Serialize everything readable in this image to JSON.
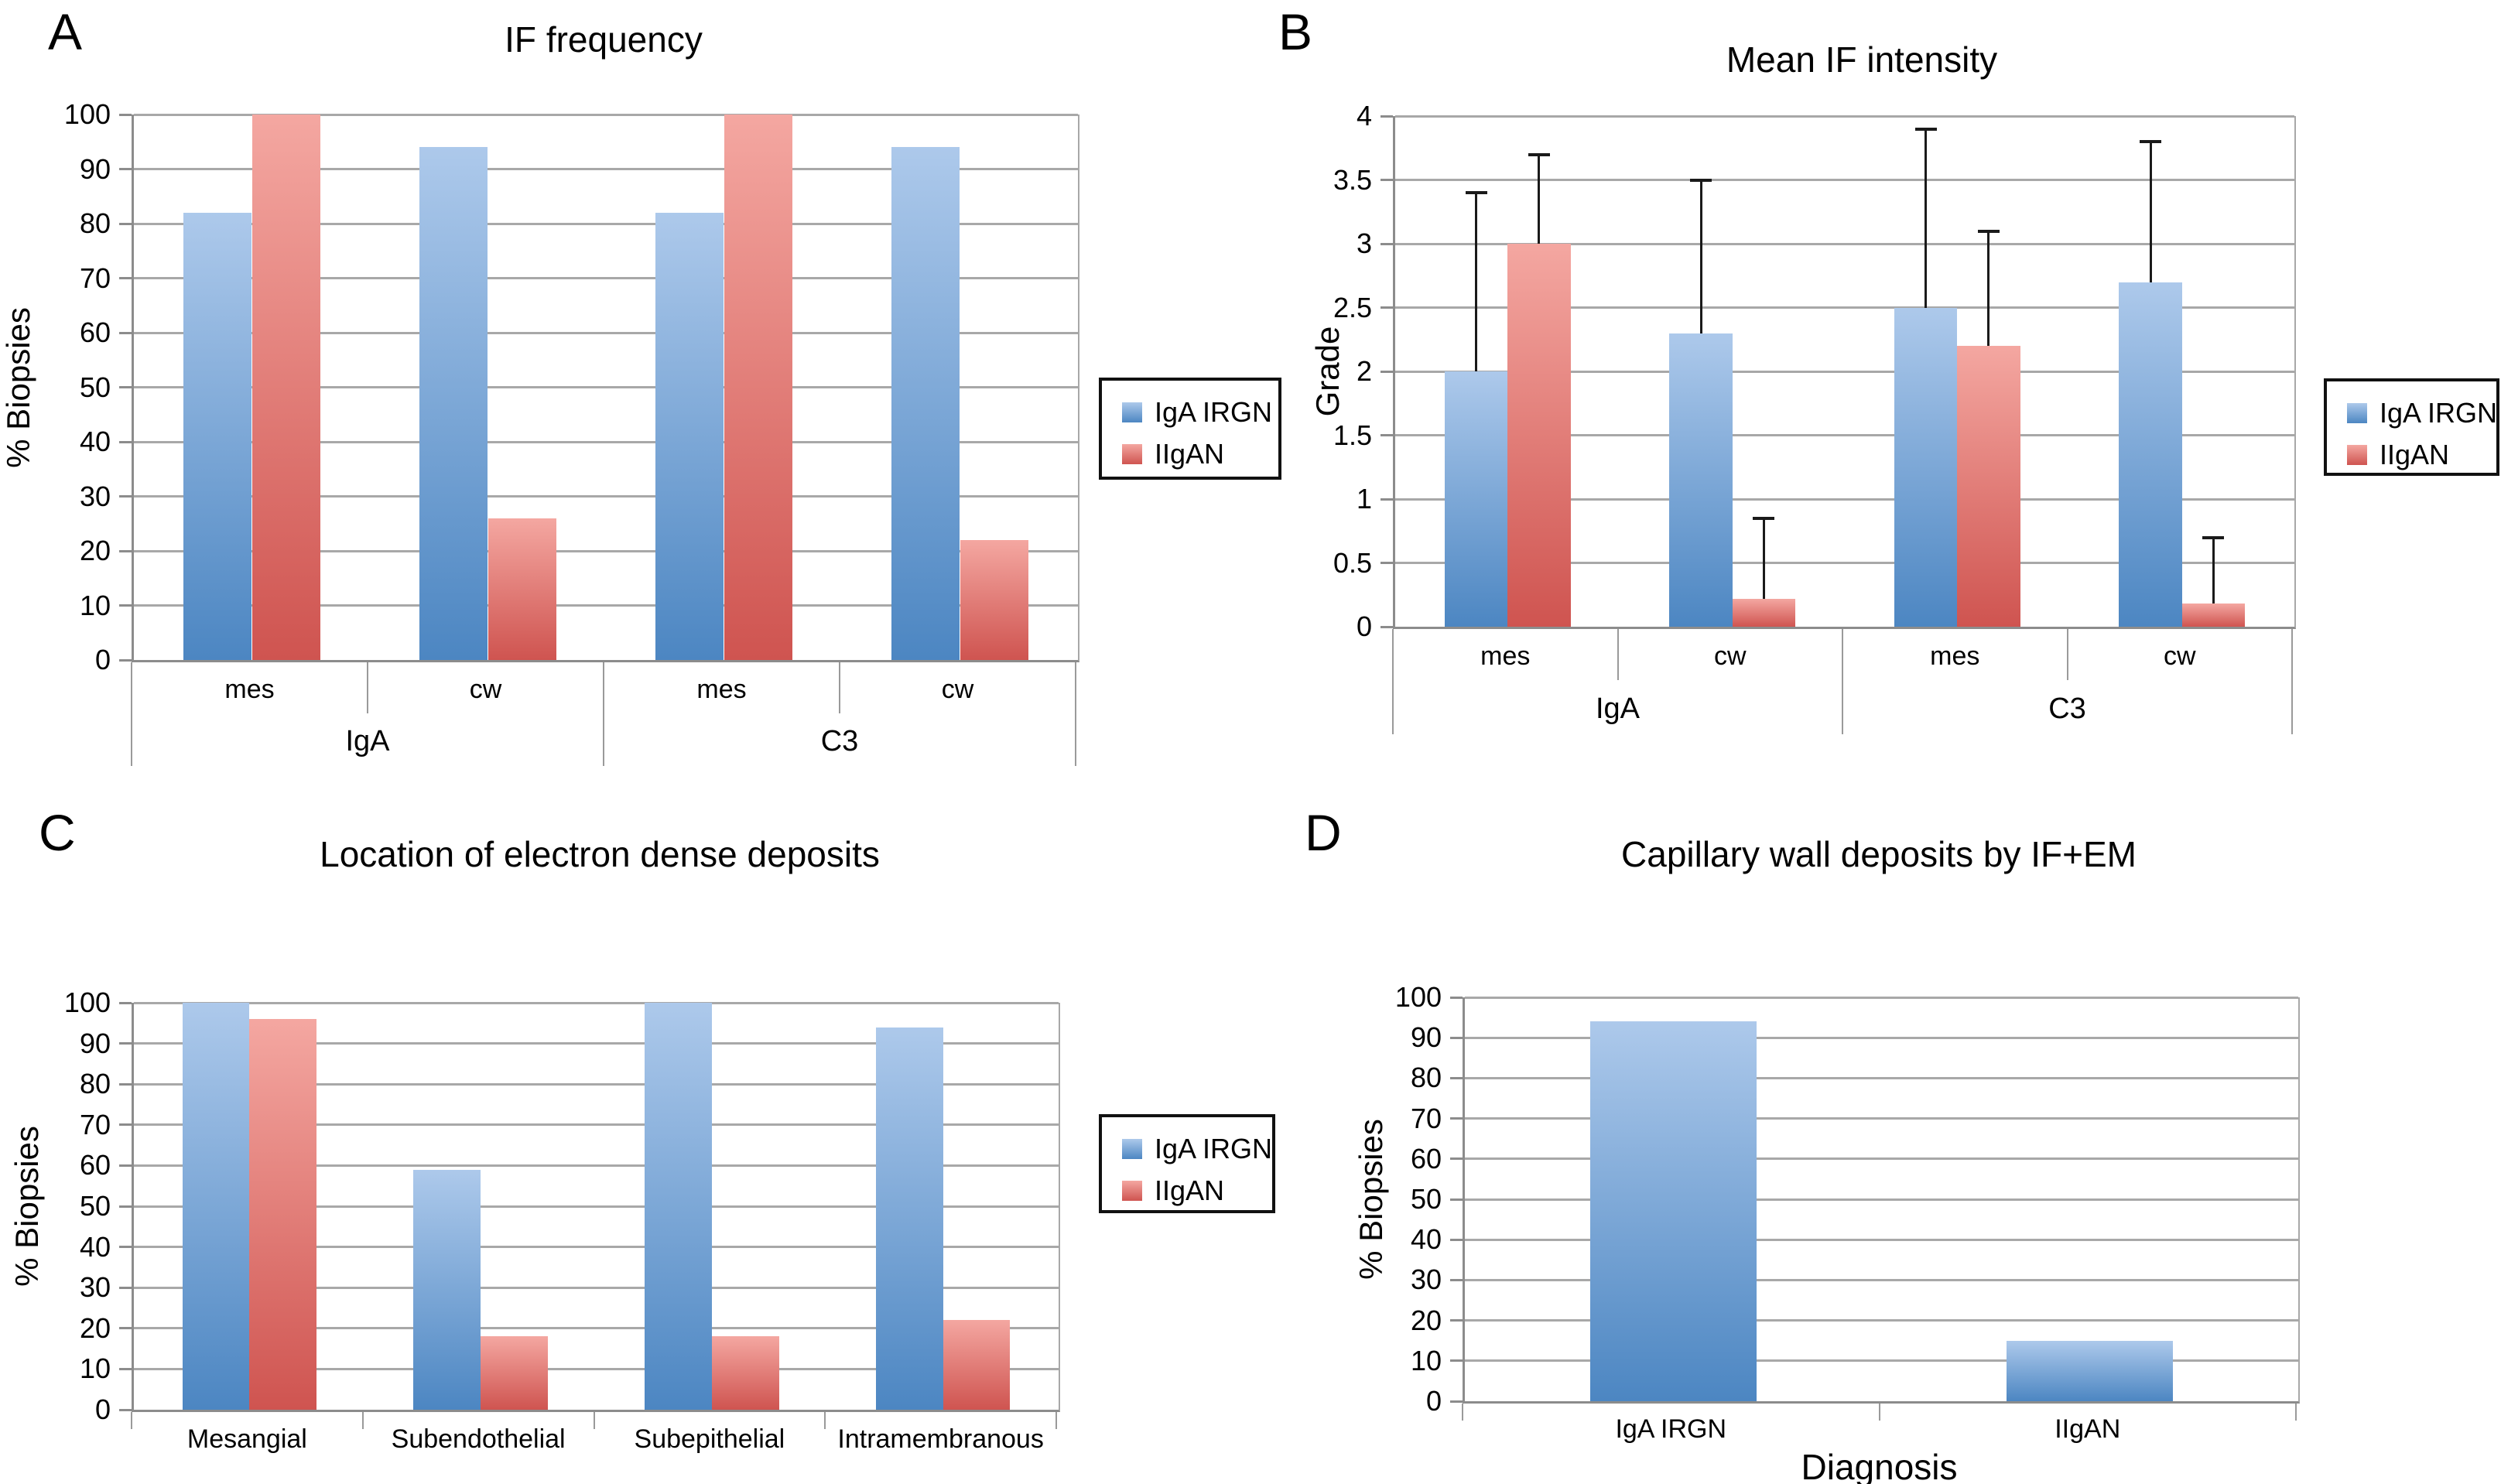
{
  "figure": {
    "background": "#ffffff"
  },
  "colors": {
    "blue": {
      "top": "#adc9eb",
      "bottom": "#4c86c2"
    },
    "red": {
      "top": "#f4a7a1",
      "bottom": "#cf5450"
    },
    "grid": "#a8a8a8",
    "axis": "#8c8c8c",
    "error_bar": "#1a1a1a"
  },
  "legend_items": [
    {
      "label": "IgA IRGN",
      "color": "blue"
    },
    {
      "label": "IIgAN",
      "color": "red"
    }
  ],
  "chart_data": [
    {
      "id": "A",
      "panel_label": "A",
      "type": "bar",
      "title": "IF frequency",
      "ylabel": "% Biopsies",
      "ylim": [
        0,
        100
      ],
      "yticks": [
        0,
        10,
        20,
        30,
        40,
        50,
        60,
        70,
        80,
        90,
        100
      ],
      "ytick_labels": [
        "0",
        "10",
        "20",
        "30",
        "40",
        "50",
        "60",
        "70",
        "80",
        "90",
        "100"
      ],
      "group_labels": [
        "IgA",
        "C3"
      ],
      "categories": [
        "mes",
        "cw",
        "mes",
        "cw"
      ],
      "series": [
        {
          "name": "IgA IRGN",
          "color": "blue",
          "values": [
            82,
            94,
            82,
            94
          ]
        },
        {
          "name": "IIgAN",
          "color": "red",
          "values": [
            100,
            26,
            100,
            22
          ]
        }
      ],
      "legend": true,
      "legend_position": "right",
      "grid": true
    },
    {
      "id": "B",
      "panel_label": "B",
      "type": "bar",
      "title": "Mean IF intensity",
      "ylabel": "Grade",
      "ylim": [
        0,
        4
      ],
      "yticks": [
        0,
        0.5,
        1,
        1.5,
        2,
        2.5,
        3,
        3.5,
        4
      ],
      "ytick_labels": [
        "0",
        "0.5",
        "1",
        "1.5",
        "2",
        "2.5",
        "3",
        "3.5",
        "4"
      ],
      "group_labels": [
        "IgA",
        "C3"
      ],
      "categories": [
        "mes",
        "cw",
        "mes",
        "cw"
      ],
      "series": [
        {
          "name": "IgA IRGN",
          "color": "blue",
          "values": [
            2.0,
            2.3,
            2.5,
            2.7
          ],
          "error_top": [
            3.4,
            3.5,
            3.9,
            3.8
          ]
        },
        {
          "name": "IIgAN",
          "color": "red",
          "values": [
            3.0,
            0.22,
            2.2,
            0.18
          ],
          "error_top": [
            3.7,
            0.85,
            3.1,
            0.7
          ]
        }
      ],
      "legend": true,
      "legend_position": "right",
      "grid": true
    },
    {
      "id": "C",
      "panel_label": "C",
      "type": "bar",
      "title": "Location of electron dense deposits",
      "ylabel": "% Biopsies",
      "ylim": [
        0,
        100
      ],
      "yticks": [
        0,
        10,
        20,
        30,
        40,
        50,
        60,
        70,
        80,
        90,
        100
      ],
      "ytick_labels": [
        "0",
        "10",
        "20",
        "30",
        "40",
        "50",
        "60",
        "70",
        "80",
        "90",
        "100"
      ],
      "categories": [
        "Mesangial",
        "Subendothelial",
        "Subepithelial",
        "Intramembranous"
      ],
      "series": [
        {
          "name": "IgA IRGN",
          "color": "blue",
          "values": [
            100,
            59,
            100,
            94
          ]
        },
        {
          "name": "IIgAN",
          "color": "red",
          "values": [
            96,
            18,
            18,
            22
          ]
        }
      ],
      "legend": true,
      "legend_position": "right",
      "grid": true
    },
    {
      "id": "D",
      "panel_label": "D",
      "type": "bar",
      "title": "Capillary wall deposits by IF+EM",
      "ylabel": "% Biopsies",
      "xlabel": "Diagnosis",
      "ylim": [
        0,
        100
      ],
      "yticks": [
        0,
        10,
        20,
        30,
        40,
        50,
        60,
        70,
        80,
        90,
        100
      ],
      "ytick_labels": [
        "0",
        "10",
        "20",
        "30",
        "40",
        "50",
        "60",
        "70",
        "80",
        "90",
        "100"
      ],
      "categories": [
        "IgA IRGN",
        "IIgAN"
      ],
      "series": [
        {
          "color": "blue",
          "values": [
            94,
            15
          ]
        }
      ],
      "legend": false,
      "grid": true
    }
  ]
}
